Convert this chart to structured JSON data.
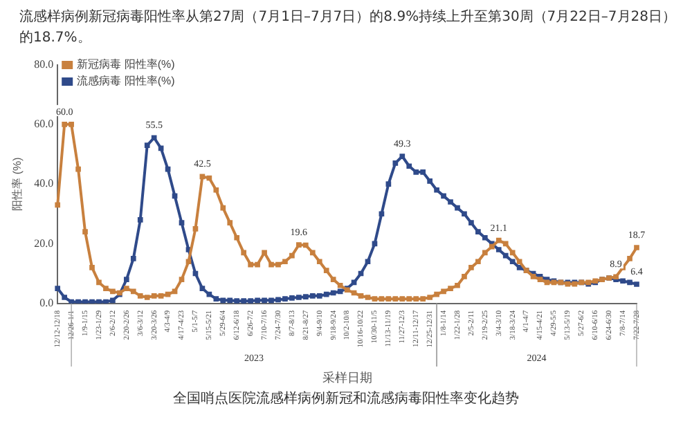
{
  "chart_data": {
    "type": "line",
    "title": "流感样病例新冠病毒阳性率从第27周（7月1日–7月7日）的8.9%持续上升至第30周（7月22日–7月28日）的18.7%。",
    "subtitle": "全国哨点医院流感样病例新冠和流感病毒阳性率变化趋势",
    "xlabel": "采样日期",
    "ylabel": "阳性率 (%)",
    "annotations": [
      "2023",
      "2024"
    ],
    "categories": [
      "12/12-12/18",
      null,
      "12/26-1/1",
      null,
      "1/9-1/15",
      null,
      "1/23-1/29",
      null,
      "2/6-2/12",
      null,
      "2/20-2/26",
      null,
      "3/6-3/12",
      null,
      "3/20-3/26",
      null,
      "4/3-4/9",
      null,
      "4/17-4/23",
      null,
      "5/1-5/7",
      null,
      "5/15-5/21",
      null,
      "5/29-6/4",
      null,
      "6/12-6/18",
      null,
      "6/26-7/2",
      null,
      "7/10-7/16",
      null,
      "7/24-7/30",
      null,
      "8/7-8/13",
      null,
      "8/21-8/27",
      null,
      "9/4-9/10",
      null,
      "9/18-9/24",
      null,
      "10/2-10/8",
      null,
      "10/16-10/22",
      null,
      "10/30-11/5",
      null,
      "11/13-11/19",
      null,
      "11/27-12/3",
      null,
      "12/11-12/17",
      null,
      "12/25-12/31",
      null,
      "1/8-1/14",
      null,
      "1/22-1/28",
      null,
      "2/5-2/11",
      null,
      "2/19-2/25",
      null,
      "3/4-3/10",
      null,
      "3/18-3/24",
      null,
      "4/1-4/7",
      null,
      "4/15-4/21",
      null,
      "4/29-5/5",
      null,
      "5/13-5/19",
      null,
      "5/27-6/2",
      null,
      "6/10-6/16",
      null,
      "6/24-6/30",
      null,
      "7/8-7/14",
      null,
      "7/22-7/28"
    ],
    "series": [
      {
        "name": "新冠病毒 阳性率(%)",
        "color": "#c8803e",
        "values": [
          33,
          60,
          60,
          45,
          24,
          12,
          7,
          5,
          4,
          3.5,
          5,
          4,
          2.5,
          2,
          2.5,
          2.5,
          3,
          4,
          8,
          14,
          25,
          42.5,
          42,
          38,
          32,
          27,
          22,
          17,
          13,
          13,
          17,
          13,
          13,
          14,
          16,
          19.6,
          19.5,
          17,
          14,
          11,
          8,
          6,
          4.5,
          3.5,
          2.5,
          2,
          1.5,
          1.5,
          1.5,
          1.5,
          1.5,
          1.5,
          1.5,
          1.5,
          2,
          3,
          4,
          5,
          6,
          9,
          12,
          14,
          17,
          19,
          21.1,
          20,
          17,
          14,
          11,
          9,
          8,
          7,
          7,
          7,
          6.5,
          6.5,
          7,
          7,
          7.5,
          8,
          8.5,
          8.9,
          12,
          15,
          18.7
        ],
        "value_labels": [
          null,
          "60.0",
          null,
          null,
          null,
          null,
          null,
          null,
          null,
          null,
          null,
          null,
          null,
          null,
          null,
          null,
          null,
          null,
          null,
          null,
          null,
          "42.5",
          null,
          null,
          null,
          null,
          null,
          null,
          null,
          null,
          null,
          null,
          null,
          null,
          null,
          "19.6",
          null,
          null,
          null,
          null,
          null,
          null,
          null,
          null,
          null,
          null,
          null,
          null,
          null,
          null,
          null,
          null,
          null,
          null,
          null,
          null,
          null,
          null,
          null,
          null,
          null,
          null,
          null,
          null,
          "21.1",
          null,
          null,
          null,
          null,
          null,
          null,
          null,
          null,
          null,
          null,
          null,
          null,
          null,
          null,
          null,
          null,
          "8.9",
          null,
          null,
          "18.7"
        ]
      },
      {
        "name": "流感病毒 阳性率(%)",
        "color": "#2f4a8a",
        "values": [
          5,
          2,
          0.5,
          0.5,
          0.5,
          0.5,
          0.5,
          0.5,
          1,
          3,
          8,
          15,
          28,
          53,
          55.5,
          52,
          45,
          36,
          27,
          18,
          10,
          5,
          3,
          1.5,
          1,
          1,
          0.8,
          0.8,
          0.8,
          1,
          1,
          1,
          1.2,
          1.5,
          1.8,
          2,
          2.2,
          2.5,
          2.5,
          3,
          3.5,
          4,
          5,
          7,
          10,
          14,
          20,
          30,
          40,
          47,
          49.3,
          46,
          44,
          44,
          41,
          38,
          36,
          34,
          32,
          30,
          27,
          24,
          22,
          20,
          18,
          16,
          14,
          12,
          11,
          10,
          9,
          8,
          7.5,
          7,
          7,
          7,
          7,
          6.5,
          7,
          8,
          8.5,
          8,
          7.5,
          7,
          6.4
        ],
        "value_labels": [
          null,
          null,
          null,
          null,
          null,
          null,
          null,
          null,
          null,
          null,
          null,
          null,
          null,
          null,
          "55.5",
          null,
          null,
          null,
          null,
          null,
          null,
          null,
          null,
          null,
          null,
          null,
          null,
          null,
          null,
          null,
          null,
          null,
          null,
          null,
          null,
          null,
          null,
          null,
          null,
          null,
          null,
          null,
          null,
          null,
          null,
          null,
          null,
          null,
          null,
          null,
          "49.3",
          null,
          null,
          null,
          null,
          null,
          null,
          null,
          null,
          null,
          null,
          null,
          null,
          null,
          null,
          null,
          null,
          null,
          null,
          null,
          null,
          null,
          null,
          null,
          null,
          null,
          null,
          null,
          null,
          null,
          null,
          null,
          null,
          null,
          "6.4"
        ]
      }
    ],
    "ylim": [
      0,
      80
    ],
    "yticks": [
      {
        "value": 0,
        "label": "0.0"
      },
      {
        "value": 20,
        "label": "20.0"
      },
      {
        "value": 40,
        "label": "40.0"
      },
      {
        "value": 60,
        "label": "60.0"
      },
      {
        "value": 80,
        "label": "80.0"
      }
    ],
    "grid": false,
    "legend": "top left",
    "marker": "square",
    "line_style": "solid"
  }
}
